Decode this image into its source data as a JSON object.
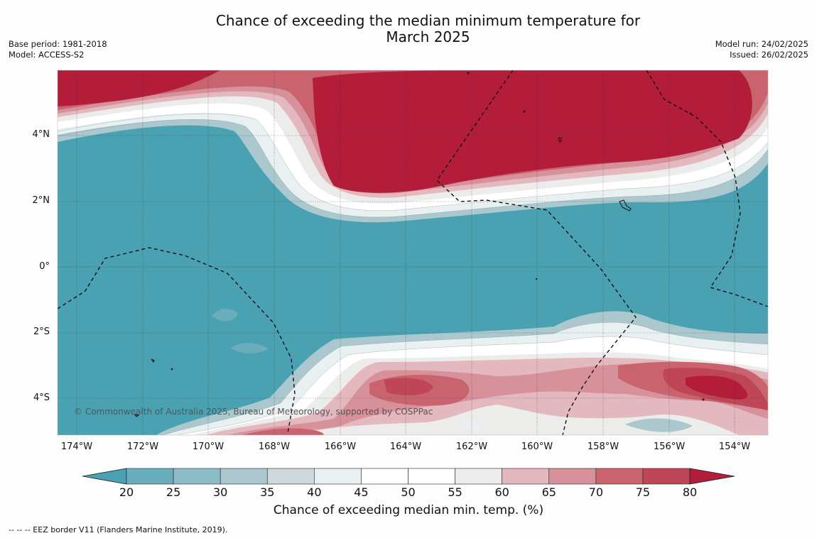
{
  "title_line1": "Chance of exceeding the median minimum temperature for",
  "title_line2": "March 2025",
  "meta_left": {
    "base_period": "Base period: 1981-2018",
    "model": "Model: ACCESS-S2"
  },
  "meta_right": {
    "model_run": "Model run: 24/02/2025",
    "issued": "Issued: 26/02/2025"
  },
  "lat_labels": [
    "4°N",
    "2°N",
    "0°",
    "2°S",
    "4°S"
  ],
  "lon_labels": [
    "174°W",
    "172°W",
    "170°W",
    "168°W",
    "166°W",
    "164°W",
    "162°W",
    "160°W",
    "158°W",
    "156°W",
    "154°W"
  ],
  "copyright": "© Commonwealth of Australia 2025, Bureau of Meteorology, supported by COSPPac",
  "colorbar": {
    "ticks": [
      "20",
      "25",
      "30",
      "35",
      "40",
      "45",
      "50",
      "55",
      "60",
      "65",
      "70",
      "75",
      "80"
    ],
    "colors": [
      "#4aa1b2",
      "#6aaebd",
      "#8bbcc7",
      "#aac8cd",
      "#cdd9dc",
      "#e9f0f1",
      "#ffffff",
      "#ffffff",
      "#ececea",
      "#e3b8bf",
      "#d7919b",
      "#c9646f",
      "#bf4657",
      "#b31d39"
    ],
    "title": "Chance of exceeding median min. temp. (%)"
  },
  "footnote": "--  --  -- EEZ border V11 (Flanders Marine Institute, 2019)."
}
